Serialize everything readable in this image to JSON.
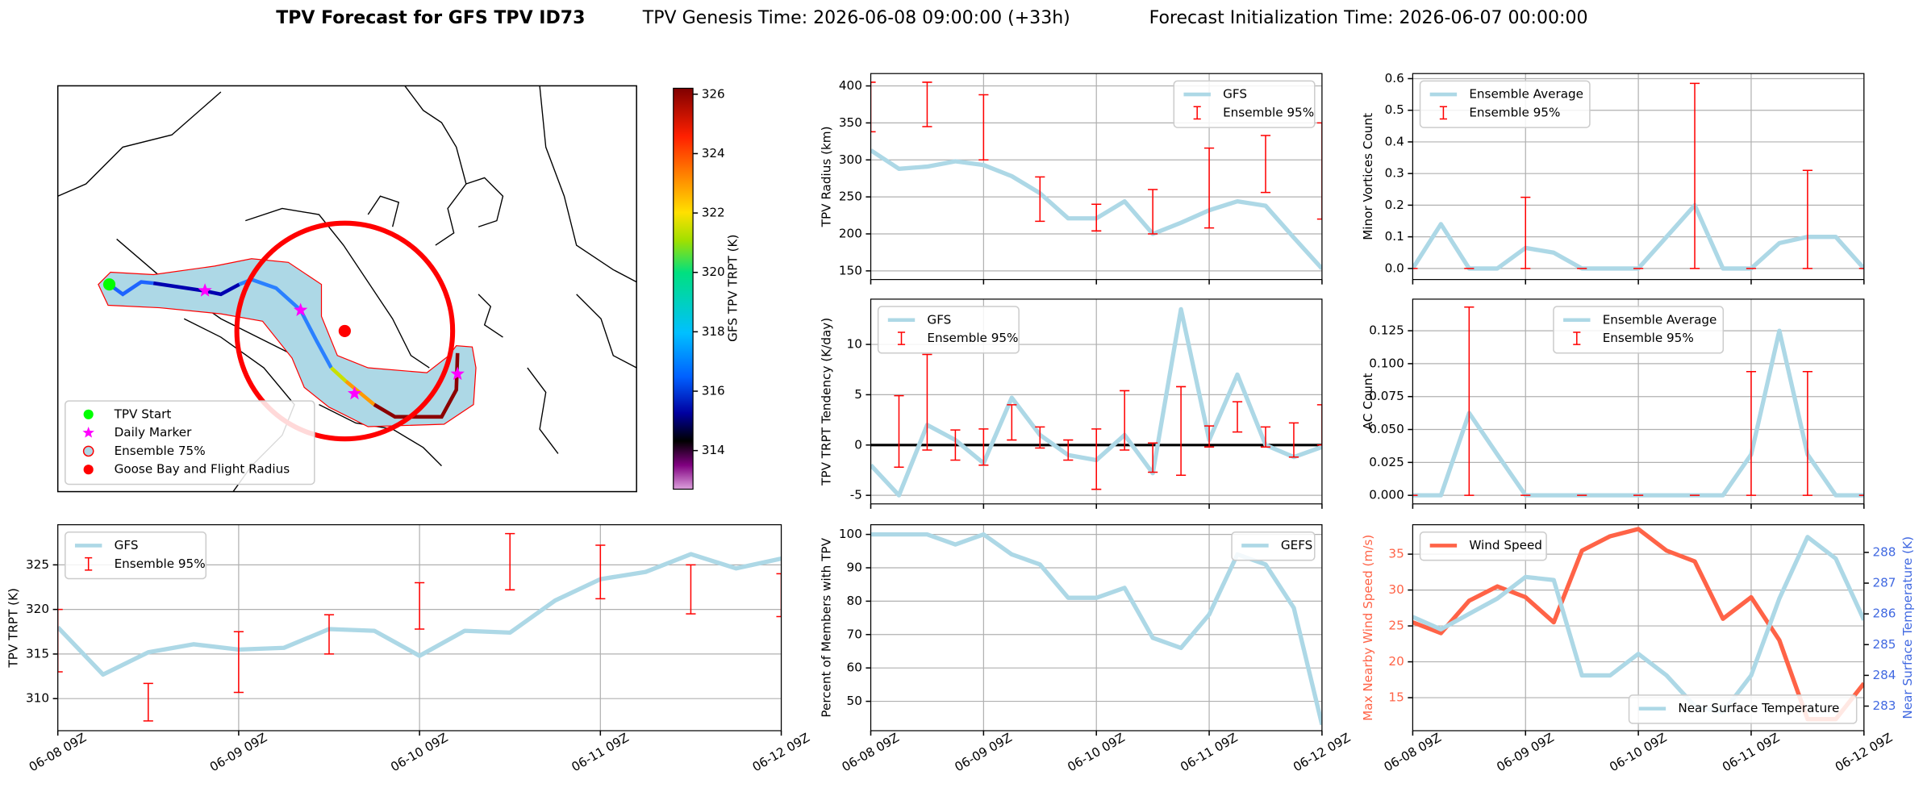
{
  "title": "TPV Forecast for GFS TPV ID73",
  "subtitle": [
    "TPV Genesis Time: 2026-06-08 09:00:00 (+33h)",
    "Forecast Initialization Time: 2026-06-07 00:00:00"
  ],
  "chart_data": [
    {
      "type": "map",
      "colorbar_label": "GFS TPV TRPT (K)",
      "clim": [
        312.7,
        326.2
      ],
      "cticks": [
        314,
        316,
        318,
        320,
        322,
        324,
        326
      ],
      "legend": "lower left",
      "legend_entries": [
        {
          "name": "TPV Start",
          "color": "#00ff00",
          "marker": "circle"
        },
        {
          "name": "Daily Marker",
          "color": "#ff00ff",
          "marker": "star"
        },
        {
          "name": "Ensemble 75%",
          "color": "#add8e6",
          "marker": "ring"
        },
        {
          "name": "Goose Bay and Flight Radius",
          "color": "#ff0000",
          "marker": "circle"
        }
      ]
    },
    {
      "type": "line",
      "ylabel": "TPV TRPT (K)",
      "categories": [
        "06-08 09Z",
        null,
        null,
        null,
        "06-09 09Z",
        null,
        null,
        null,
        "06-10 09Z",
        null,
        null,
        null,
        "06-11 09Z",
        null,
        null,
        null,
        "06-12 09Z"
      ],
      "ylim": [
        306.4,
        329.5
      ],
      "yticks": [
        310,
        315,
        320,
        325
      ],
      "grid": true,
      "legend": "upper left",
      "series": [
        {
          "name": "GFS",
          "color": "#add8e6",
          "values": [
            318,
            312.7,
            315.2,
            316.1,
            315.5,
            315.7,
            317.8,
            317.6,
            314.8,
            317.6,
            317.4,
            321,
            323.4,
            324.2,
            326.2,
            324.6,
            325.7
          ]
        },
        {
          "name": "Ensemble 95%",
          "color": "#ff0000",
          "low": [
            313,
            null,
            307.5,
            null,
            310.7,
            null,
            315,
            null,
            317.8,
            null,
            322.2,
            null,
            321.2,
            null,
            319.5,
            null,
            319.2
          ],
          "high": [
            320,
            null,
            311.7,
            null,
            317.5,
            null,
            319.4,
            null,
            323,
            null,
            328.5,
            null,
            327.2,
            null,
            325,
            null,
            324
          ]
        }
      ]
    },
    {
      "type": "line",
      "ylabel": "TPV Radius (km)",
      "categories": [
        null,
        null,
        null,
        null,
        null,
        null,
        null,
        null,
        null,
        null,
        null,
        null,
        null,
        null,
        null,
        null,
        null
      ],
      "ylim": [
        138.3,
        416.7
      ],
      "yticks": [
        150,
        200,
        250,
        300,
        350,
        400
      ],
      "grid": true,
      "legend": "upper right",
      "series": [
        {
          "name": "GFS",
          "color": "#add8e6",
          "values": [
            313,
            288,
            291,
            298,
            293,
            278,
            255,
            221,
            221,
            244,
            200,
            215,
            232,
            244,
            238,
            195,
            153
          ]
        },
        {
          "name": "Ensemble 95%",
          "color": "#ff0000",
          "low": [
            338,
            null,
            345,
            null,
            300,
            null,
            217,
            null,
            204,
            null,
            200,
            null,
            208,
            null,
            256,
            null,
            220
          ],
          "high": [
            405,
            null,
            405,
            null,
            388,
            null,
            277,
            null,
            240,
            null,
            260,
            null,
            316,
            null,
            333,
            null,
            350
          ]
        }
      ]
    },
    {
      "type": "line",
      "ylabel": "TPV TRPT Tendency (K/day)",
      "categories": [
        null,
        null,
        null,
        null,
        null,
        null,
        null,
        null,
        null,
        null,
        null,
        null,
        null,
        null,
        null,
        null,
        null
      ],
      "ylim": [
        -5.85,
        14.5
      ],
      "yticks": [
        -5,
        0,
        5,
        10
      ],
      "grid": true,
      "hline": 0,
      "legend": "upper left",
      "series": [
        {
          "name": "GFS",
          "color": "#add8e6",
          "values": [
            -2,
            -5,
            2,
            0.5,
            -1.8,
            4.7,
            1,
            -1,
            -1.5,
            1,
            -2.8,
            13.5,
            0.5,
            7,
            0,
            -1.2,
            -0.2
          ]
        },
        {
          "name": "Ensemble 95%",
          "color": "#ff0000",
          "low": [
            null,
            -2.2,
            -0.5,
            -1.5,
            -2,
            0.5,
            -0.3,
            -1.5,
            -4.4,
            -0.5,
            -2.7,
            -3,
            -0.2,
            1.3,
            -0.2,
            -1.2,
            0
          ],
          "high": [
            null,
            4.9,
            9,
            1.5,
            1.6,
            4,
            1.8,
            0.5,
            1.6,
            5.4,
            0.2,
            5.8,
            1.9,
            4.3,
            1.8,
            2.2,
            4
          ]
        }
      ]
    },
    {
      "type": "line",
      "ylabel": "Percent of Members with TPV",
      "categories": [
        "06-08 09Z",
        null,
        null,
        null,
        "06-09 09Z",
        null,
        null,
        null,
        "06-10 09Z",
        null,
        null,
        null,
        "06-11 09Z",
        null,
        null,
        null,
        "06-12 09Z"
      ],
      "ylim": [
        41.2,
        102.9
      ],
      "yticks": [
        50,
        60,
        70,
        80,
        90,
        100
      ],
      "grid": true,
      "legend": "upper right",
      "series": [
        {
          "name": "GEFS",
          "color": "#add8e6",
          "values": [
            100,
            100,
            100,
            97,
            100,
            94,
            91,
            81,
            81,
            84,
            69,
            66,
            76,
            94,
            91,
            78,
            43
          ]
        }
      ]
    },
    {
      "type": "line",
      "ylabel": "Minor Vortices Count",
      "categories": [
        null,
        null,
        null,
        null,
        null,
        null,
        null,
        null,
        null,
        null,
        null,
        null,
        null,
        null,
        null,
        null,
        null
      ],
      "ylim": [
        -0.035,
        0.616
      ],
      "yticks": [
        {
          "value": 0,
          "label": "0.0"
        },
        0.1,
        0.2,
        0.3,
        0.4,
        0.5,
        0.6
      ],
      "grid": true,
      "legend": "upper left",
      "series": [
        {
          "name": "Ensemble Average",
          "color": "#add8e6",
          "values": [
            0,
            0.14,
            0,
            0,
            0.065,
            0.05,
            0,
            0,
            0,
            0.1,
            0.2,
            0,
            0,
            0.08,
            0.1,
            0.1,
            0
          ]
        },
        {
          "name": "Ensemble 95%",
          "color": "#ff0000",
          "low": [
            0,
            null,
            0,
            null,
            0,
            null,
            0,
            null,
            0,
            null,
            0,
            null,
            0,
            null,
            0,
            null,
            0
          ],
          "high": [
            0,
            null,
            0,
            null,
            0.225,
            null,
            0,
            null,
            0,
            null,
            0.585,
            null,
            0,
            null,
            0.31,
            null,
            0
          ]
        }
      ]
    },
    {
      "type": "line",
      "ylabel": "AC Count",
      "categories": [
        null,
        null,
        null,
        null,
        null,
        null,
        null,
        null,
        null,
        null,
        null,
        null,
        null,
        null,
        null,
        null,
        null
      ],
      "ylim": [
        -0.0065,
        0.149
      ],
      "yticks": [
        {
          "value": 0,
          "label": "0.000"
        },
        0.025,
        {
          "value": 0.05,
          "label": "0.050"
        },
        0.075,
        {
          "value": 0.1,
          "label": "0.100"
        },
        0.125
      ],
      "grid": true,
      "legend": "upper center",
      "series": [
        {
          "name": "Ensemble Average",
          "color": "#add8e6",
          "values": [
            0,
            0,
            0.0625,
            0.031,
            0,
            0,
            0,
            0,
            0,
            0,
            0,
            0,
            0.031,
            0.125,
            0.031,
            0,
            0
          ]
        },
        {
          "name": "Ensemble 95%",
          "color": "#ff0000",
          "low": [
            0,
            null,
            0,
            null,
            0,
            null,
            0,
            null,
            0,
            null,
            0,
            null,
            0,
            null,
            0,
            null,
            0
          ],
          "high": [
            0,
            null,
            0.143,
            null,
            0,
            null,
            0,
            null,
            0,
            null,
            0,
            null,
            0.094,
            null,
            0.094,
            null,
            0
          ]
        }
      ]
    },
    {
      "type": "line",
      "ylabel": "Max Nearby Wind Speed (m/s)",
      "ylabel_color": "#ff6347",
      "y2label": "Near Surface Temperature (K)",
      "y2label_color": "#4169e1",
      "categories": [
        "06-08 09Z",
        null,
        null,
        null,
        "06-09 09Z",
        null,
        null,
        null,
        "06-10 09Z",
        null,
        null,
        null,
        "06-11 09Z",
        null,
        null,
        null,
        "06-12 09Z"
      ],
      "ylim": [
        10.4,
        39.1
      ],
      "yticks": [
        15,
        20,
        25,
        30,
        35
      ],
      "y2lim": [
        282.2,
        288.9
      ],
      "y2ticks": [
        283,
        284,
        285,
        286,
        287,
        288
      ],
      "grid": true,
      "legend": "upper left",
      "legend2": "lower right",
      "series": [
        {
          "name": "Wind Speed",
          "color": "#ff6347",
          "values": [
            25.5,
            24,
            28.5,
            30.5,
            29,
            25.5,
            35.5,
            37.5,
            38.5,
            35.5,
            34,
            26,
            29,
            23,
            12,
            12,
            17
          ]
        },
        {
          "name": "Near Surface Temperature",
          "color": "#add8e6",
          "axis": "y2",
          "values": [
            285.9,
            285.5,
            286,
            286.5,
            287.2,
            287.1,
            284,
            284,
            284.7,
            284,
            283,
            282.8,
            284,
            286.5,
            288.5,
            287.8,
            285.8
          ]
        }
      ]
    }
  ]
}
